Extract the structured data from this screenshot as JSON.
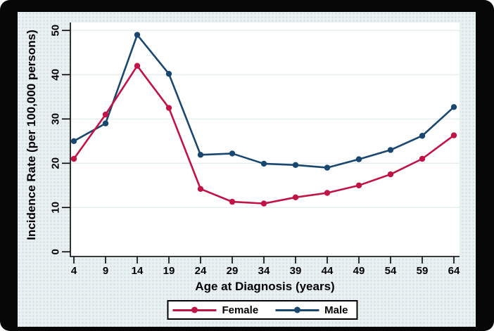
{
  "figure": {
    "frame_color": "#070707",
    "canvas_background": "#EAF1F2"
  },
  "chart_data": {
    "type": "line",
    "title": "",
    "xlabel": "Age at Diagnosis (years)",
    "ylabel": "Incidence Rate (per 100,000 persons)",
    "x": [
      4,
      9,
      14,
      19,
      24,
      29,
      34,
      39,
      44,
      49,
      54,
      59,
      64
    ],
    "x_tick_labels": [
      "4",
      "9",
      "14",
      "19",
      "24",
      "29",
      "34",
      "39",
      "44",
      "49",
      "54",
      "59",
      "64"
    ],
    "y_ticks": [
      0,
      10,
      20,
      30,
      40,
      50
    ],
    "ylim": [
      0,
      52
    ],
    "grid": "horizontal",
    "gridline_color": "#DCE8EA",
    "axis_color": "#000000",
    "legend_position": "bottom-center",
    "series": [
      {
        "name": "Male",
        "color": "#1A476F",
        "values": [
          25,
          29,
          49,
          40.2,
          21.9,
          22.2,
          19.9,
          19.6,
          19,
          20.9,
          23,
          26.2,
          32.7
        ]
      },
      {
        "name": "Female",
        "color": "#C11345",
        "values": [
          21,
          31,
          42,
          32.5,
          14.2,
          11.3,
          10.9,
          12.3,
          13.3,
          15,
          17.5,
          21,
          26.3
        ]
      }
    ]
  },
  "axes": {
    "y_title": "Incidence Rate (per 100,000 persons)",
    "x_title": "Age at Diagnosis (years)"
  },
  "legend": {
    "items": [
      {
        "label": "Female",
        "color": "#C11345"
      },
      {
        "label": "Male",
        "color": "#1A476F"
      }
    ]
  }
}
